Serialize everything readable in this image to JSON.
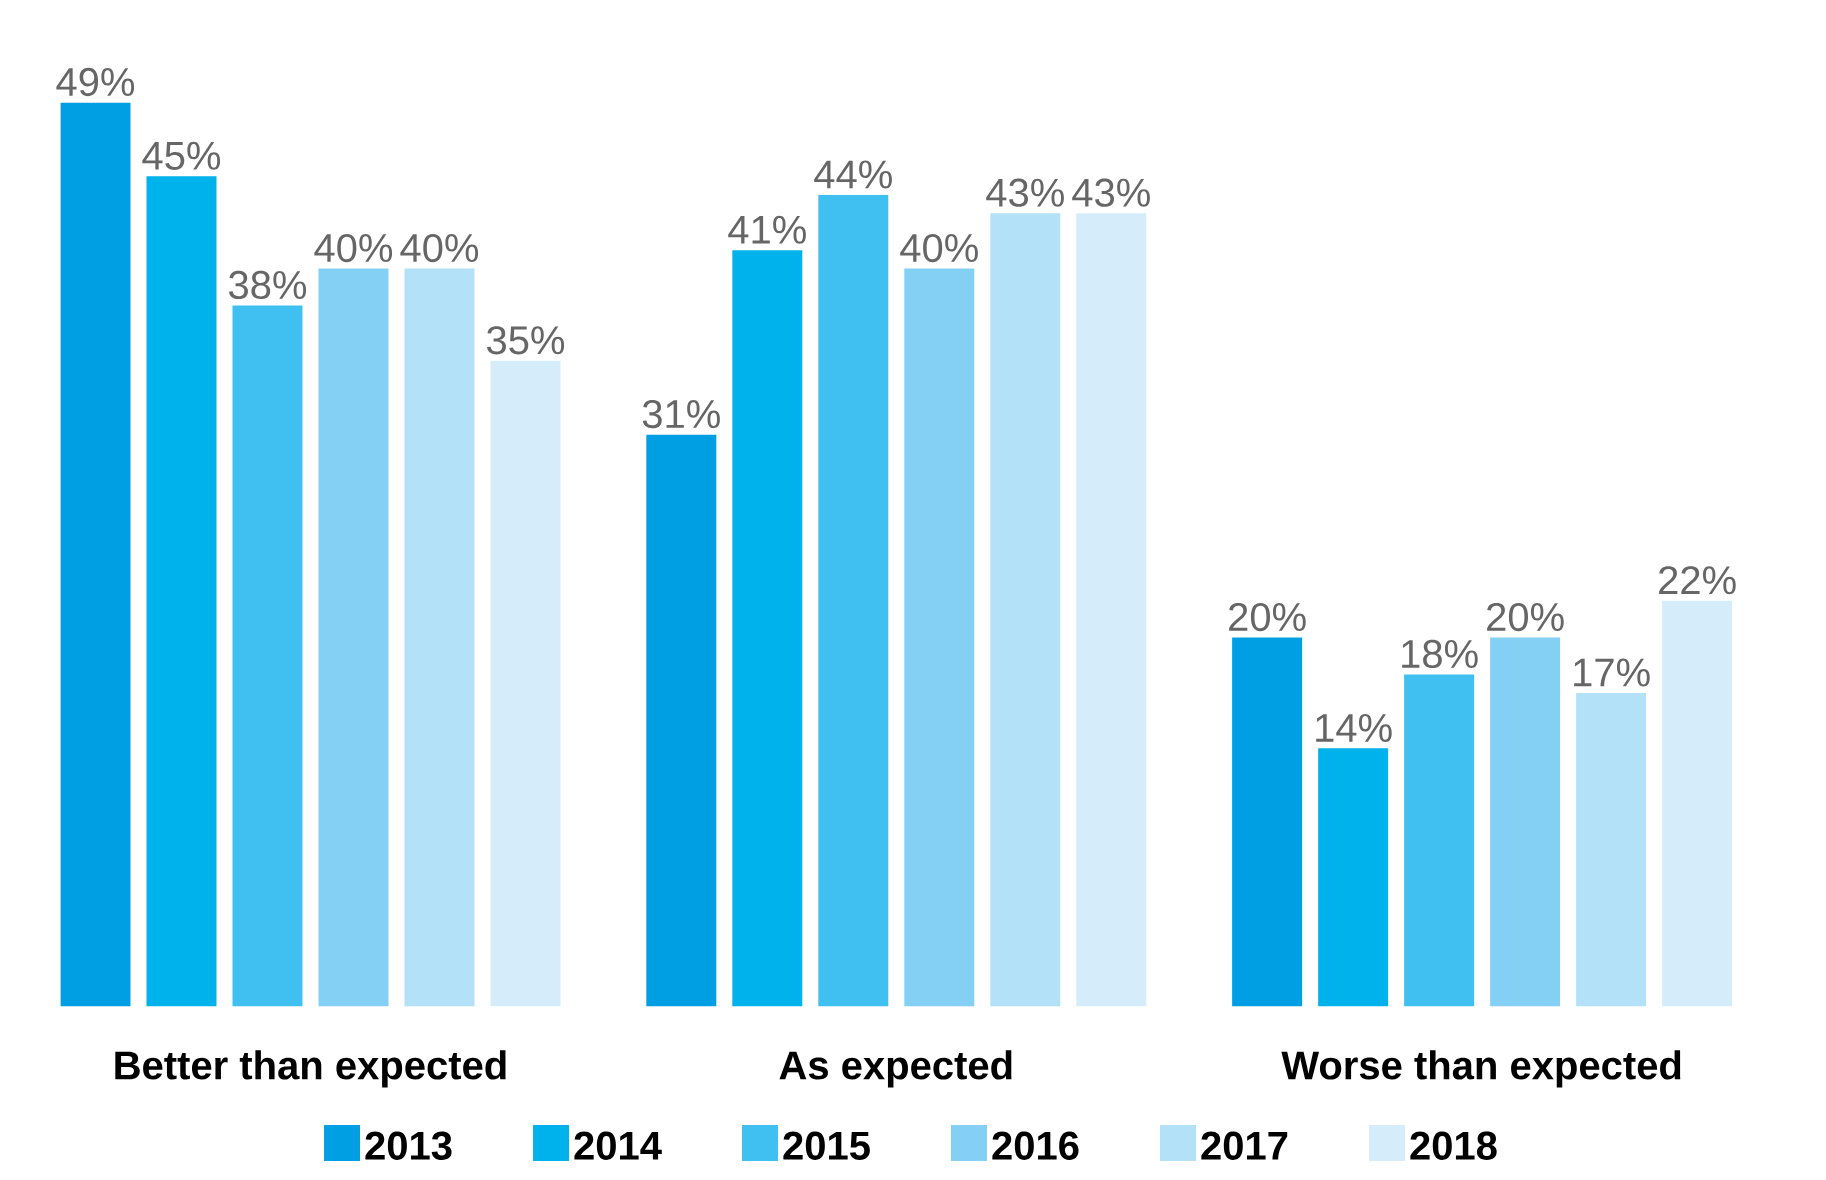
{
  "chart_data": {
    "type": "bar",
    "categories": [
      "Better than expected",
      "As expected",
      "Worse than expected"
    ],
    "series": [
      {
        "name": "2013",
        "color": "#009fe3",
        "values": [
          49,
          31,
          20
        ],
        "value_labels": [
          "49%",
          "31%",
          "20%"
        ]
      },
      {
        "name": "2014",
        "color": "#00b2ec",
        "values": [
          45,
          41,
          14
        ],
        "value_labels": [
          "45%",
          "41%",
          "14%"
        ]
      },
      {
        "name": "2015",
        "color": "#40c0f0",
        "values": [
          38,
          44,
          18
        ],
        "value_labels": [
          "38%",
          "44%",
          "18%"
        ]
      },
      {
        "name": "2016",
        "color": "#84d0f4",
        "values": [
          40,
          40,
          20
        ],
        "value_labels": [
          "40%",
          "40%",
          "20%"
        ]
      },
      {
        "name": "2017",
        "color": "#b3e1f8",
        "values": [
          40,
          43,
          17
        ],
        "value_labels": [
          "40%",
          "43%",
          "17%"
        ]
      },
      {
        "name": "2018",
        "color": "#d5edfa",
        "values": [
          35,
          43,
          22
        ],
        "value_labels": [
          "35%",
          "43%",
          "22%"
        ]
      }
    ],
    "legend": "bottom"
  }
}
